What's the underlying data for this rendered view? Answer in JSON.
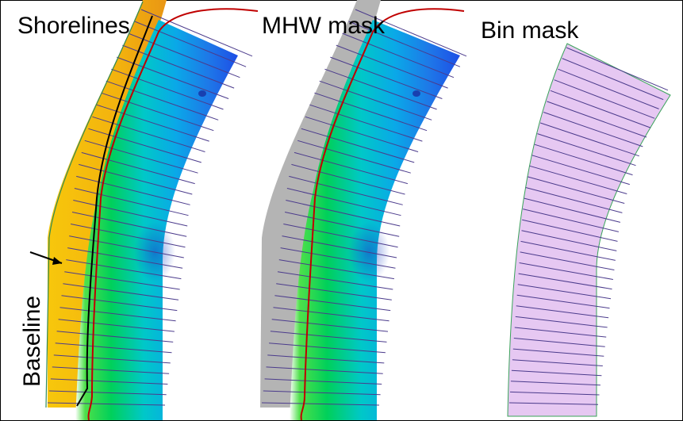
{
  "panels": [
    {
      "title": "Shorelines"
    },
    {
      "title": "MHW mask"
    },
    {
      "title": "Bin mask"
    }
  ],
  "annotation": {
    "text": "Baseline"
  },
  "colors": {
    "shoreline_red": "#c00000",
    "shoreline_black": "#000000",
    "mask_gray": "#b0b0b0",
    "bin_fill": "#e8c8f4",
    "transect": "#4b3b8c",
    "depth_shallow": "#00e000",
    "depth_mid": "#00b8e0",
    "depth_deep": "#1e50e8",
    "beach_yellow": "#f5c20a",
    "beach_orange": "#ee9a14"
  },
  "transects_per_panel": 34
}
